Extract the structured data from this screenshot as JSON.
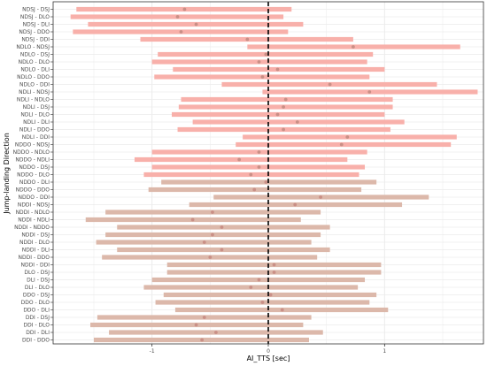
{
  "colors": {
    "bar_pink": "#f8b0aa",
    "bar_tan": "#dcb8aa",
    "point": "#c98f86",
    "zero_line": "#000000",
    "grid": "#ebebeb",
    "frame": "#333333"
  },
  "chart_data": {
    "type": "range-bar",
    "xlabel": "AI_TTS [sec]",
    "ylabel": "Jump-landing Direction",
    "xlim": [
      -1.85,
      1.85
    ],
    "xticks": [
      -1,
      0,
      1
    ],
    "xtick_labels": [
      "-1",
      "0",
      "1"
    ],
    "grid": true,
    "reference_line": 0,
    "series": [
      {
        "label": "NDSJ - DSJ",
        "low": -1.65,
        "high": 0.2,
        "point": -0.72,
        "color": "pink"
      },
      {
        "label": "NDSJ - DLO",
        "low": -1.7,
        "high": 0.13,
        "point": -0.78,
        "color": "pink"
      },
      {
        "label": "NDSJ - DLI",
        "low": -1.55,
        "high": 0.3,
        "point": -0.62,
        "color": "pink"
      },
      {
        "label": "NDSJ - DDO",
        "low": -1.68,
        "high": 0.17,
        "point": -0.75,
        "color": "pink"
      },
      {
        "label": "NDSJ - DDI",
        "low": -1.1,
        "high": 0.73,
        "point": -0.18,
        "color": "pink"
      },
      {
        "label": "NDLO - NDSJ",
        "low": -0.18,
        "high": 1.65,
        "point": 0.73,
        "color": "pink"
      },
      {
        "label": "NDLO - DSJ",
        "low": -0.95,
        "high": 0.9,
        "point": -0.02,
        "color": "pink"
      },
      {
        "label": "NDLO - DLO",
        "low": -1.0,
        "high": 0.85,
        "point": -0.08,
        "color": "pink"
      },
      {
        "label": "NDLO - DLI",
        "low": -0.82,
        "high": 1.0,
        "point": 0.08,
        "color": "pink"
      },
      {
        "label": "NDLO - DDO",
        "low": -0.98,
        "high": 0.87,
        "point": -0.05,
        "color": "pink"
      },
      {
        "label": "NDLO - DDI",
        "low": -0.4,
        "high": 1.45,
        "point": 0.53,
        "color": "pink"
      },
      {
        "label": "NDLI - NDSJ",
        "low": -0.05,
        "high": 1.8,
        "point": 0.87,
        "color": "pink"
      },
      {
        "label": "NDLI - NDLO",
        "low": -0.75,
        "high": 1.07,
        "point": 0.15,
        "color": "pink"
      },
      {
        "label": "NDLI - DSJ",
        "low": -0.77,
        "high": 1.07,
        "point": 0.13,
        "color": "pink"
      },
      {
        "label": "NDLI - DLO",
        "low": -0.83,
        "high": 1.0,
        "point": 0.08,
        "color": "pink"
      },
      {
        "label": "NDLI - DLI",
        "low": -0.65,
        "high": 1.17,
        "point": 0.25,
        "color": "pink"
      },
      {
        "label": "NDLI - DDO",
        "low": -0.78,
        "high": 1.05,
        "point": 0.13,
        "color": "pink"
      },
      {
        "label": "NDLI - DDI",
        "low": -0.22,
        "high": 1.62,
        "point": 0.68,
        "color": "pink"
      },
      {
        "label": "NDDO - NDSJ",
        "low": -0.28,
        "high": 1.57,
        "point": 0.63,
        "color": "pink"
      },
      {
        "label": "NDDO - NDLO",
        "low": -1.0,
        "high": 0.85,
        "point": -0.08,
        "color": "pink"
      },
      {
        "label": "NDDO - NDLI",
        "low": -1.15,
        "high": 0.68,
        "point": -0.25,
        "color": "pink"
      },
      {
        "label": "NDDO - DSJ",
        "low": -1.0,
        "high": 0.83,
        "point": -0.08,
        "color": "pink"
      },
      {
        "label": "NDDO - DLO",
        "low": -1.07,
        "high": 0.78,
        "point": -0.15,
        "color": "pink"
      },
      {
        "label": "NDDO - DLI",
        "low": -0.92,
        "high": 0.93,
        "point": -0.02,
        "color": "tan"
      },
      {
        "label": "NDDO - DDO",
        "low": -1.03,
        "high": 0.8,
        "point": -0.12,
        "color": "tan"
      },
      {
        "label": "NDDO - DDI",
        "low": -0.47,
        "high": 1.38,
        "point": 0.45,
        "color": "tan"
      },
      {
        "label": "NDDI - NDSJ",
        "low": -0.68,
        "high": 1.15,
        "point": 0.23,
        "color": "tan"
      },
      {
        "label": "NDDI - NDLO",
        "low": -1.4,
        "high": 0.45,
        "point": -0.48,
        "color": "tan"
      },
      {
        "label": "NDDI - NDLI",
        "low": -1.57,
        "high": 0.28,
        "point": -0.65,
        "color": "tan"
      },
      {
        "label": "NDDI - NDDO",
        "low": -1.3,
        "high": 0.53,
        "point": -0.4,
        "color": "tan"
      },
      {
        "label": "NDDI - DSJ",
        "low": -1.4,
        "high": 0.45,
        "point": -0.48,
        "color": "tan"
      },
      {
        "label": "NDDI - DLO",
        "low": -1.48,
        "high": 0.37,
        "point": -0.55,
        "color": "tan"
      },
      {
        "label": "NDDI - DLI",
        "low": -1.3,
        "high": 0.53,
        "point": -0.4,
        "color": "tan"
      },
      {
        "label": "NDDI - DDO",
        "low": -1.43,
        "high": 0.42,
        "point": -0.5,
        "color": "tan"
      },
      {
        "label": "NDDI - DDI",
        "low": -0.87,
        "high": 0.97,
        "point": 0.05,
        "color": "tan"
      },
      {
        "label": "DLO - DSJ",
        "low": -0.87,
        "high": 0.97,
        "point": 0.05,
        "color": "tan"
      },
      {
        "label": "DLI - DSJ",
        "low": -1.0,
        "high": 0.83,
        "point": -0.08,
        "color": "tan"
      },
      {
        "label": "DLI - DLO",
        "low": -1.07,
        "high": 0.77,
        "point": -0.15,
        "color": "tan"
      },
      {
        "label": "DDO - DSJ",
        "low": -0.9,
        "high": 0.93,
        "point": 0.02,
        "color": "tan"
      },
      {
        "label": "DDO - DLO",
        "low": -0.97,
        "high": 0.87,
        "point": -0.05,
        "color": "tan"
      },
      {
        "label": "DDO - DLI",
        "low": -0.8,
        "high": 1.03,
        "point": 0.12,
        "color": "tan"
      },
      {
        "label": "DDI - DSJ",
        "low": -1.47,
        "high": 0.37,
        "point": -0.55,
        "color": "tan"
      },
      {
        "label": "DDI - DLO",
        "low": -1.53,
        "high": 0.3,
        "point": -0.62,
        "color": "tan"
      },
      {
        "label": "DDI - DLI",
        "low": -1.37,
        "high": 0.47,
        "point": -0.45,
        "color": "tan"
      },
      {
        "label": "DDI - DDO",
        "low": -1.5,
        "high": 0.35,
        "point": -0.57,
        "color": "tan"
      }
    ]
  }
}
